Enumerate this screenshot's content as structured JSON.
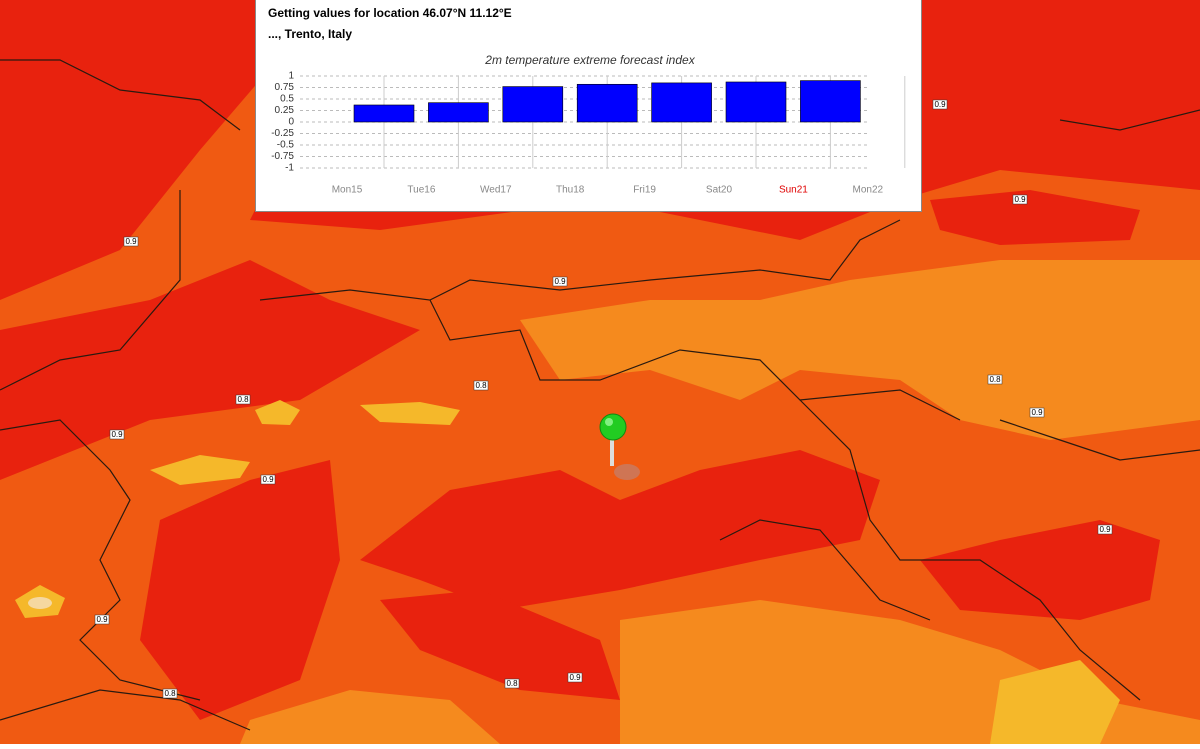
{
  "popup": {
    "location": "Getting values for location 46.07°N 11.12°E",
    "place": "..., Trento, Italy"
  },
  "chart_data": {
    "type": "bar",
    "title": "2m temperature extreme forecast index",
    "categories": [
      "Mon15",
      "Tue16",
      "Wed17",
      "Thu18",
      "Fri19",
      "Sat20",
      "Sun21",
      "Mon22"
    ],
    "values": [
      0.37,
      0.42,
      0.77,
      0.82,
      0.85,
      0.87,
      0.9,
      null
    ],
    "color": "#0000ff",
    "ylim": [
      -1,
      1
    ],
    "yticks": [
      1,
      0.75,
      0.5,
      0.25,
      0,
      -0.25,
      -0.5,
      -0.75,
      -1
    ],
    "grid": true,
    "highlight": {
      "index": 6,
      "color": "#e00000"
    }
  },
  "map": {
    "contour_labels": [
      "0.9",
      "0.9",
      "0.9",
      "0.9",
      "0.8",
      "0.9",
      "0.8",
      "0.8",
      "0.9",
      "0.9",
      "0.9",
      "0.9",
      "0.8",
      "0.8",
      "0.9"
    ]
  }
}
